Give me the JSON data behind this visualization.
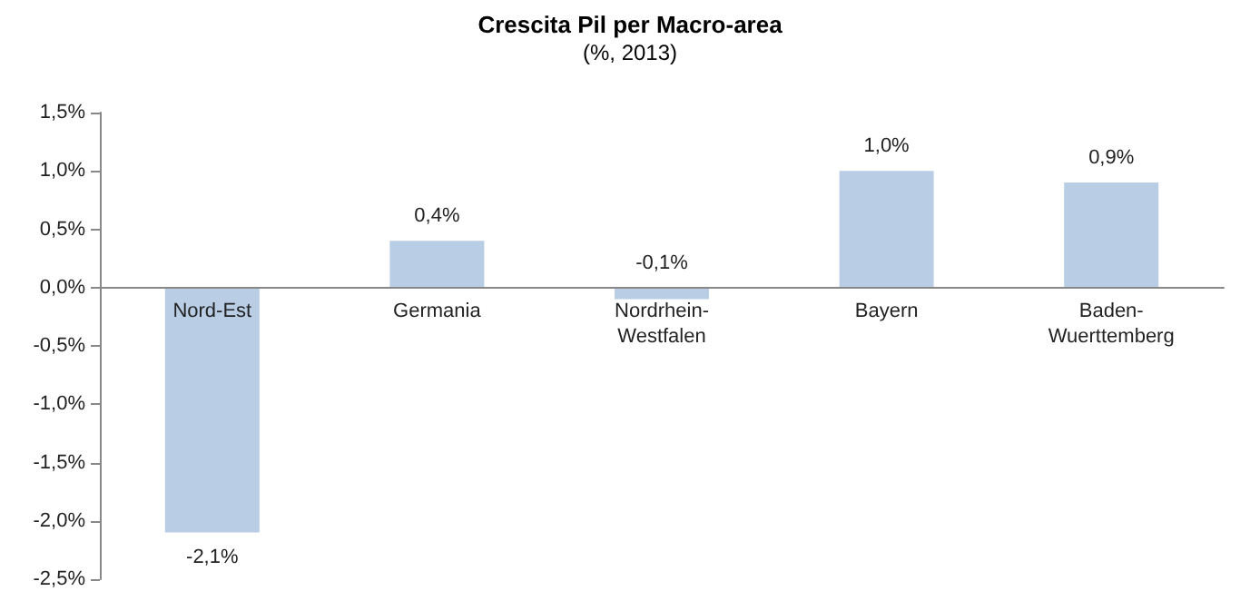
{
  "chart_data": {
    "type": "bar",
    "title": "Crescita Pil per Macro-area",
    "subtitle": "(%, 2013)",
    "categories": [
      "Nord-Est",
      "Germania",
      "Nordrhein-Westfalen",
      "Bayern",
      "Baden-Wuerttemberg"
    ],
    "values": [
      -2.1,
      0.4,
      -0.1,
      1.0,
      0.9
    ],
    "value_labels": [
      "-2,1%",
      "0,4%",
      "-0,1%",
      "1,0%",
      "0,9%"
    ],
    "color": "#b9cde5",
    "ylim": [
      -2.5,
      1.5
    ],
    "yticks": [
      {
        "value": -2.5,
        "label": "-2,5%"
      },
      {
        "value": -2.0,
        "label": "-2,0%"
      },
      {
        "value": -1.5,
        "label": "-1,5%"
      },
      {
        "value": -1.0,
        "label": "-1,0%"
      },
      {
        "value": -0.5,
        "label": "-0,5%"
      },
      {
        "value": 0,
        "label": "0,0%"
      },
      {
        "value": 0.5,
        "label": "0,5%"
      },
      {
        "value": 1.0,
        "label": "1,0%"
      },
      {
        "value": 1.5,
        "label": "1,5%"
      }
    ],
    "grid": false
  }
}
